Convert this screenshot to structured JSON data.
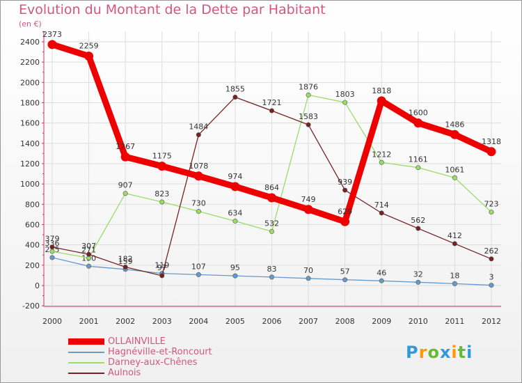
{
  "chart_data": {
    "type": "line",
    "title": "Evolution du Montant de la Dette par Habitant",
    "unit_label": "(en €)",
    "x": [
      "2000",
      "2001",
      "2002",
      "2003",
      "2004",
      "2005",
      "2006",
      "2007",
      "2008",
      "2009",
      "2010",
      "2011",
      "2012"
    ],
    "ylim": [
      -200,
      2600
    ],
    "yticks": [
      -200,
      0,
      200,
      400,
      600,
      800,
      1000,
      1200,
      1400,
      1600,
      1800,
      2000,
      2200,
      2400
    ],
    "series": [
      {
        "name": "OLLAINVILLE",
        "color": "#ee0000",
        "thick": true,
        "values": [
          2373,
          2259,
          1267,
          1175,
          1078,
          974,
          864,
          749,
          629,
          1818,
          1600,
          1486,
          1318
        ]
      },
      {
        "name": "Hagnéville-et-Roncourt",
        "color": "#6699cc",
        "thick": false,
        "values": [
          275,
          190,
          159,
          119,
          107,
          95,
          83,
          70,
          57,
          46,
          32,
          18,
          3
        ]
      },
      {
        "name": "Darney-aux-Chênes",
        "color": "#99dd66",
        "thick": false,
        "values": [
          336,
          271,
          907,
          823,
          730,
          634,
          532,
          1876,
          1803,
          1212,
          1161,
          1061,
          723
        ]
      },
      {
        "name": "Aulnois",
        "color": "#772222",
        "thick": false,
        "values": [
          379,
          307,
          182,
          97,
          1484,
          1855,
          1721,
          1583,
          939,
          714,
          562,
          412,
          262
        ]
      }
    ]
  },
  "logo": {
    "letters": [
      "P",
      "r",
      "o",
      "x",
      "i",
      "t",
      "i"
    ],
    "colors": [
      "#3399dd",
      "#ff9900",
      "#66bb33",
      "#3399dd",
      "#ff9900",
      "#66bb33",
      "#3399dd"
    ]
  }
}
